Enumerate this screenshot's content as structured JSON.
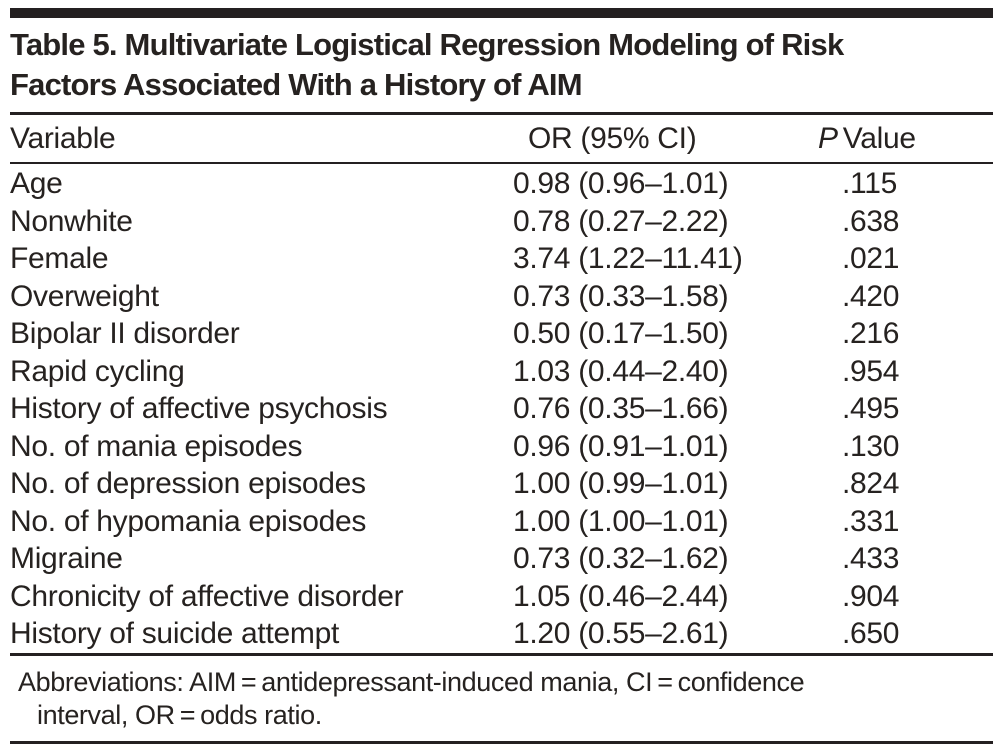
{
  "table": {
    "title_line1": "Table 5. Multivariate Logistical Regression Modeling of Risk",
    "title_line2": "Factors Associated With a History of AIM",
    "columns": {
      "variable": "Variable",
      "or": "OR (95% CI)",
      "p_italic": "P",
      "p_rest": "Value"
    },
    "rows": [
      {
        "variable": "Age",
        "or": "0.98 (0.96–1.01)",
        "p": ".115"
      },
      {
        "variable": "Nonwhite",
        "or": "0.78 (0.27–2.22)",
        "p": ".638"
      },
      {
        "variable": "Female",
        "or": "3.74 (1.22–11.41)",
        "p": ".021"
      },
      {
        "variable": "Overweight",
        "or": "0.73 (0.33–1.58)",
        "p": ".420"
      },
      {
        "variable": "Bipolar II disorder",
        "or": "0.50 (0.17–1.50)",
        "p": ".216"
      },
      {
        "variable": "Rapid cycling",
        "or": "1.03 (0.44–2.40)",
        "p": ".954"
      },
      {
        "variable": "History of affective psychosis",
        "or": "0.76 (0.35–1.66)",
        "p": ".495"
      },
      {
        "variable": "No. of mania episodes",
        "or": "0.96 (0.91–1.01)",
        "p": ".130"
      },
      {
        "variable": "No. of depression episodes",
        "or": "1.00 (0.99–1.01)",
        "p": ".824"
      },
      {
        "variable": "No. of hypomania episodes",
        "or": "1.00 (1.00–1.01)",
        "p": ".331"
      },
      {
        "variable": "Migraine",
        "or": "0.73 (0.32–1.62)",
        "p": ".433"
      },
      {
        "variable": "Chronicity of affective disorder",
        "or": "1.05 (0.46–2.44)",
        "p": ".904"
      },
      {
        "variable": "History of suicide attempt",
        "or": "1.20 (0.55–2.61)",
        "p": ".650"
      }
    ],
    "footnote_line1": "Abbreviations: AIM = antidepressant-induced mania, CI = confidence",
    "footnote_line2": "interval, OR = odds ratio.",
    "ink_color": "#242021"
  }
}
